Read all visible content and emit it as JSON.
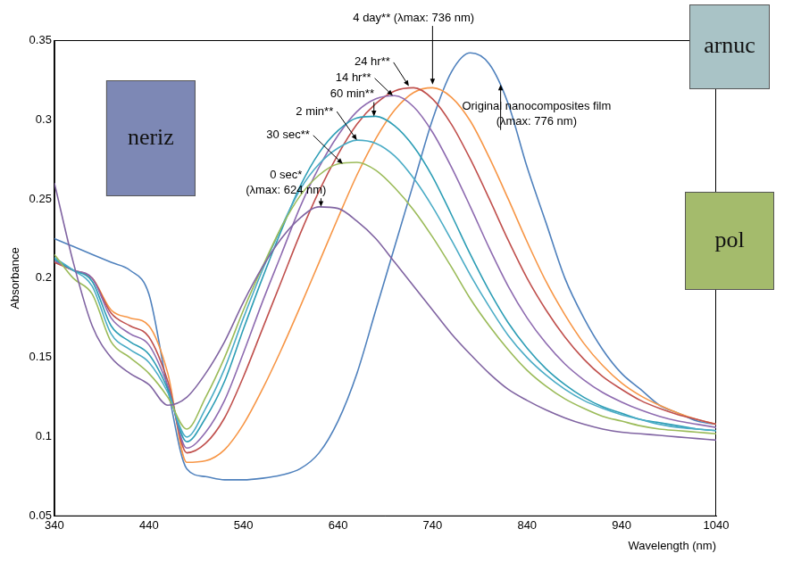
{
  "chart_data": {
    "type": "line",
    "x_label": "Wavelength (nm)",
    "y_label": "Absorbance",
    "xlim": [
      340,
      1040
    ],
    "xticks": [
      340,
      440,
      540,
      640,
      740,
      840,
      940,
      1040
    ],
    "ylim": [
      0.05,
      0.35
    ],
    "yticks": [
      0.05,
      0.1,
      0.15,
      0.2,
      0.25,
      0.3,
      0.35
    ],
    "grid": false,
    "x": [
      340,
      360,
      380,
      400,
      420,
      440,
      460,
      480,
      500,
      520,
      540,
      560,
      580,
      600,
      620,
      640,
      660,
      680,
      700,
      720,
      740,
      760,
      780,
      800,
      820,
      840,
      860,
      880,
      900,
      920,
      940,
      960,
      980,
      1000,
      1020,
      1040
    ],
    "series": [
      {
        "name": "0 sec*",
        "color": "#8064a2",
        "values": [
          0.26,
          0.21,
          0.17,
          0.15,
          0.14,
          0.133,
          0.12,
          0.125,
          0.14,
          0.16,
          0.185,
          0.207,
          0.225,
          0.238,
          0.245,
          0.244,
          0.236,
          0.225,
          0.21,
          0.195,
          0.18,
          0.165,
          0.152,
          0.14,
          0.13,
          0.123,
          0.117,
          0.112,
          0.108,
          0.105,
          0.103,
          0.102,
          0.101,
          0.1,
          0.099,
          0.098
        ]
      },
      {
        "name": "30 sec**",
        "color": "#9bbb59",
        "values": [
          0.215,
          0.2,
          0.19,
          0.16,
          0.15,
          0.14,
          0.125,
          0.105,
          0.125,
          0.15,
          0.18,
          0.207,
          0.232,
          0.252,
          0.265,
          0.272,
          0.273,
          0.268,
          0.257,
          0.243,
          0.226,
          0.207,
          0.187,
          0.17,
          0.155,
          0.142,
          0.132,
          0.124,
          0.118,
          0.113,
          0.11,
          0.107,
          0.105,
          0.104,
          0.103,
          0.102
        ]
      },
      {
        "name": "2 min**",
        "color": "#4bacc6",
        "values": [
          0.213,
          0.205,
          0.195,
          0.165,
          0.155,
          0.147,
          0.128,
          0.1,
          0.118,
          0.143,
          0.175,
          0.205,
          0.232,
          0.256,
          0.272,
          0.282,
          0.287,
          0.285,
          0.277,
          0.263,
          0.245,
          0.224,
          0.202,
          0.182,
          0.164,
          0.15,
          0.139,
          0.13,
          0.123,
          0.118,
          0.114,
          0.111,
          0.108,
          0.106,
          0.105,
          0.104
        ]
      },
      {
        "name": "60 min**",
        "color": "#2c9db5",
        "values": [
          0.212,
          0.205,
          0.198,
          0.17,
          0.16,
          0.152,
          0.13,
          0.097,
          0.112,
          0.135,
          0.168,
          0.2,
          0.23,
          0.258,
          0.279,
          0.293,
          0.301,
          0.302,
          0.296,
          0.283,
          0.264,
          0.24,
          0.215,
          0.192,
          0.172,
          0.156,
          0.143,
          0.133,
          0.125,
          0.119,
          0.115,
          0.111,
          0.109,
          0.107,
          0.105,
          0.104
        ]
      },
      {
        "name": "14 hr**",
        "color": "#8e6bb0",
        "values": [
          0.211,
          0.205,
          0.2,
          0.175,
          0.165,
          0.158,
          0.132,
          0.093,
          0.103,
          0.123,
          0.153,
          0.185,
          0.215,
          0.245,
          0.27,
          0.29,
          0.305,
          0.313,
          0.315,
          0.308,
          0.292,
          0.27,
          0.245,
          0.219,
          0.195,
          0.175,
          0.159,
          0.146,
          0.136,
          0.128,
          0.122,
          0.117,
          0.113,
          0.11,
          0.108,
          0.106
        ]
      },
      {
        "name": "24 hr**",
        "color": "#c0504d",
        "values": [
          0.21,
          0.205,
          0.2,
          0.178,
          0.17,
          0.163,
          0.135,
          0.09,
          0.096,
          0.112,
          0.138,
          0.168,
          0.198,
          0.228,
          0.255,
          0.278,
          0.297,
          0.31,
          0.318,
          0.32,
          0.313,
          0.297,
          0.275,
          0.25,
          0.224,
          0.2,
          0.18,
          0.163,
          0.149,
          0.138,
          0.13,
          0.123,
          0.118,
          0.114,
          0.111,
          0.108
        ]
      },
      {
        "name": "4 day**",
        "color": "#f79646",
        "values": [
          0.21,
          0.205,
          0.2,
          0.18,
          0.175,
          0.17,
          0.14,
          0.084,
          0.085,
          0.092,
          0.108,
          0.13,
          0.155,
          0.182,
          0.21,
          0.238,
          0.265,
          0.288,
          0.306,
          0.317,
          0.32,
          0.314,
          0.299,
          0.276,
          0.25,
          0.223,
          0.198,
          0.177,
          0.159,
          0.145,
          0.134,
          0.126,
          0.12,
          0.115,
          0.111,
          0.108
        ]
      },
      {
        "name": "Original nanocomposites film",
        "color": "#4f81bd",
        "values": [
          0.225,
          0.22,
          0.215,
          0.21,
          0.205,
          0.19,
          0.13,
          0.08,
          0.075,
          0.073,
          0.073,
          0.074,
          0.076,
          0.08,
          0.09,
          0.11,
          0.14,
          0.18,
          0.22,
          0.26,
          0.3,
          0.33,
          0.342,
          0.335,
          0.31,
          0.27,
          0.235,
          0.2,
          0.175,
          0.155,
          0.14,
          0.13,
          0.12,
          0.115,
          0.11,
          0.108
        ]
      }
    ],
    "annotations": [
      {
        "text": [
          "0 sec*",
          "(λmax: 624 nm)"
        ],
        "x": 585,
        "y": 0.265,
        "arrow_to": [
          622,
          0.245
        ]
      },
      {
        "text": [
          "30 sec**"
        ],
        "x": 610,
        "y": 0.29,
        "arrow_to": [
          645,
          0.272
        ]
      },
      {
        "text": [
          "2 min**"
        ],
        "x": 635,
        "y": 0.305,
        "arrow_to": [
          660,
          0.287
        ]
      },
      {
        "text": [
          "60 min**"
        ],
        "x": 655,
        "y": 0.316,
        "arrow_to": [
          678,
          0.302
        ]
      },
      {
        "text": [
          "14 hr**"
        ],
        "x": 675,
        "y": 0.326,
        "arrow_to": [
          698,
          0.315
        ]
      },
      {
        "text": [
          "24 hr**"
        ],
        "x": 695,
        "y": 0.336,
        "arrow_to": [
          715,
          0.321
        ]
      },
      {
        "text": [
          "4 day** (λmax: 736 nm)"
        ],
        "x": 720,
        "y": 0.364,
        "arrow_to": [
          740,
          0.322
        ]
      },
      {
        "text": [
          "Original nanocomposites film",
          "(λmax: 776 nm)"
        ],
        "x": 850,
        "y": 0.308,
        "arrow_to": [
          812,
          0.322
        ]
      }
    ],
    "insets": [
      {
        "text": "neriz",
        "color": "#7d88b5"
      },
      {
        "text": "arnuc",
        "color": "#a9c3c6"
      },
      {
        "text": "pol",
        "color": "#a4bb6c"
      }
    ]
  }
}
